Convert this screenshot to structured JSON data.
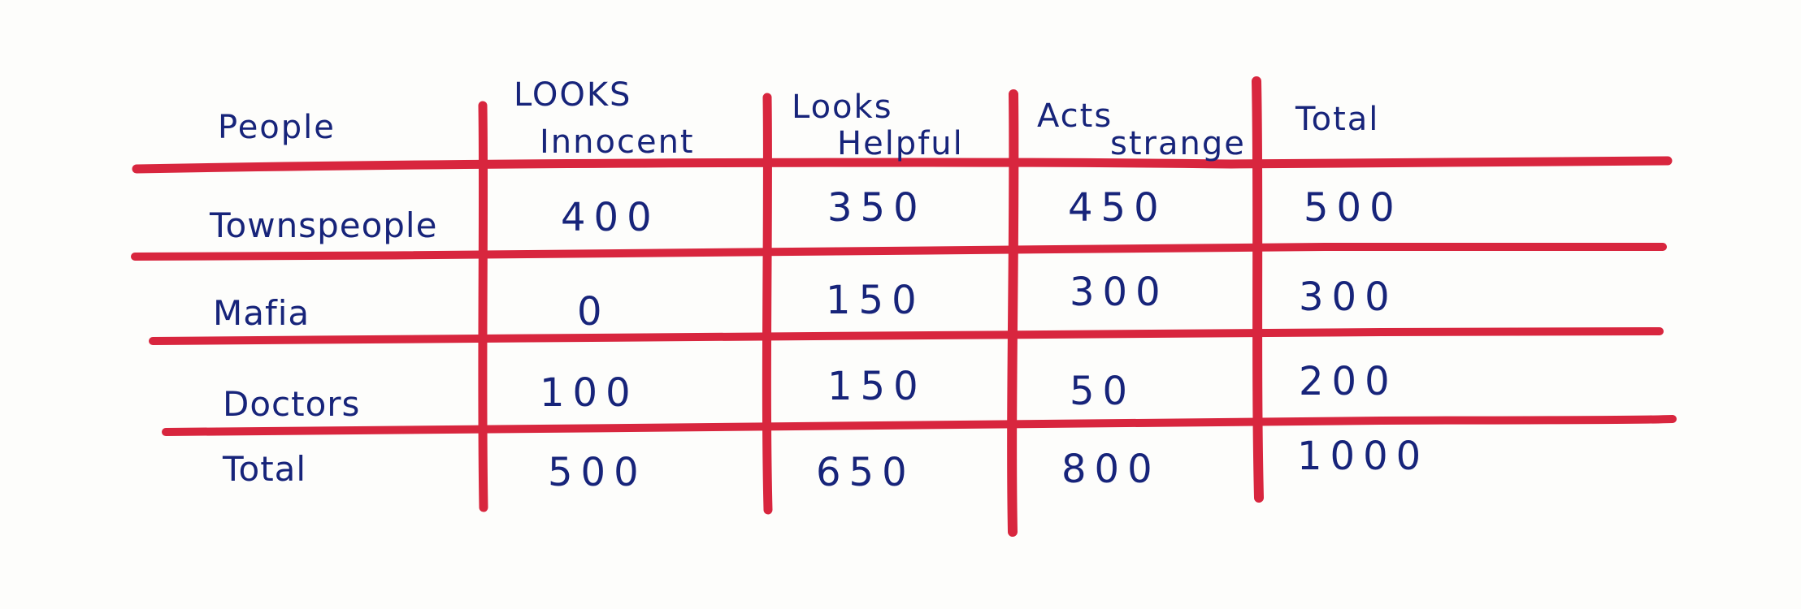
{
  "table": {
    "header": {
      "row_label": "People",
      "columns": [
        {
          "line1": "LOOKS",
          "line2": "Innocent"
        },
        {
          "line1": "Looks",
          "line2": "Helpful"
        },
        {
          "line1": "Acts",
          "line2": "strange"
        },
        {
          "line1": "Total",
          "line2": ""
        }
      ]
    },
    "rows": [
      {
        "label": "Townspeople",
        "values": [
          "400",
          "350",
          "450",
          "500"
        ]
      },
      {
        "label": "Mafia",
        "values": [
          "0",
          "150",
          "300",
          "300"
        ]
      },
      {
        "label": "Doctors",
        "values": [
          "100",
          "150",
          "50",
          "200"
        ]
      },
      {
        "label": "Total",
        "values": [
          "500",
          "650",
          "800",
          "1000"
        ]
      }
    ]
  },
  "colors": {
    "ink": "#17247a",
    "grid": "#d8263e",
    "paper": "#fdfdfb"
  }
}
